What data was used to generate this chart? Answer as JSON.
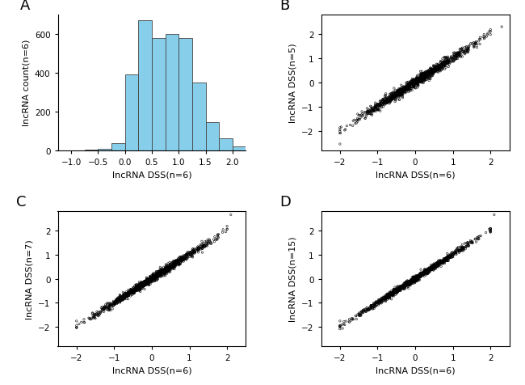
{
  "hist_bar_color": "#87CEEB",
  "hist_bar_heights": [
    2,
    8,
    35,
    390,
    670,
    580,
    600,
    580,
    350,
    145,
    60,
    18
  ],
  "hist_bin_edges": [
    -0.75,
    -0.5,
    -0.25,
    0.0,
    0.25,
    0.5,
    0.75,
    1.0,
    1.25,
    1.5,
    1.75,
    2.0,
    2.25
  ],
  "hist_xlim": [
    -1.25,
    2.25
  ],
  "hist_xticks": [
    -1,
    -0.5,
    0,
    0.5,
    1,
    1.5,
    2
  ],
  "hist_ylim": [
    0,
    700
  ],
  "hist_yticks": [
    0,
    200,
    400,
    600
  ],
  "hist_xlabel": "lncRNA DSS(n=6)",
  "hist_ylabel": "lncRNA count(n=6)",
  "scatter_xlim": [
    -2.5,
    2.5
  ],
  "scatter_ylim": [
    -2.8,
    2.8
  ],
  "scatter_xticks": [
    -2,
    -1,
    0,
    1,
    2
  ],
  "scatter_yticks": [
    -2,
    -1,
    0,
    1,
    2
  ],
  "scatter_xlabel": "lncRNA DSS(n=6)",
  "scatter_ylabel_B": "lncRNA DSS(n=5)",
  "scatter_ylabel_C": "lncRNA DSS(n=7)",
  "scatter_ylabel_D": "lncRNA DSS(n=15)",
  "panel_labels": [
    "A",
    "B",
    "C",
    "D"
  ],
  "n_points": 1200,
  "background_color": "#ffffff",
  "marker_color": "none",
  "marker_edge_color": "#000000",
  "marker_size": 3,
  "seed": 42
}
